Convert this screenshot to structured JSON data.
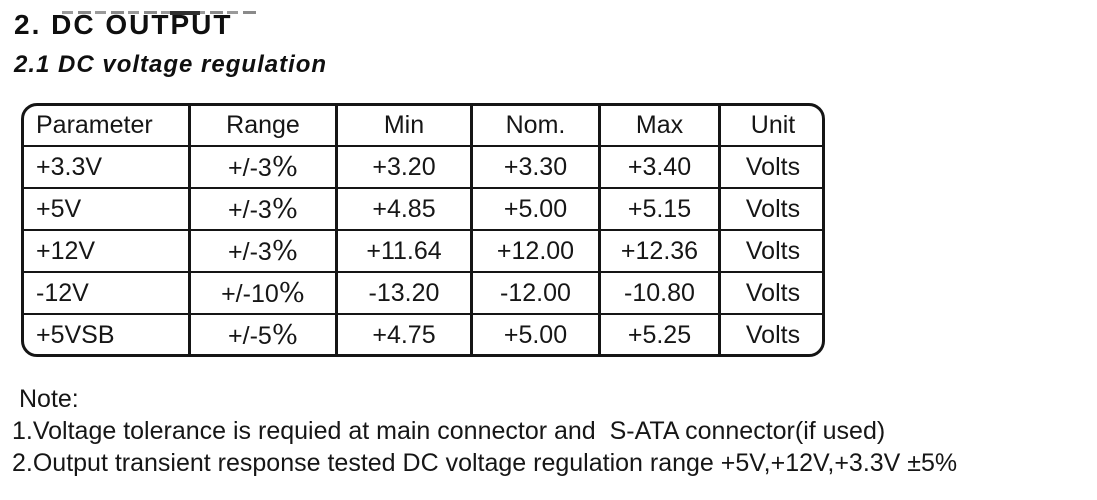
{
  "page": {
    "title": "2. DC OUTPUT",
    "subtitle": "2.1 DC voltage regulation"
  },
  "table": {
    "columns": [
      "Parameter",
      "Range",
      "Min",
      "Nom.",
      "Max",
      "Unit"
    ],
    "rows": [
      [
        "+3.3V",
        "+/-3%",
        "+3.20",
        "+3.30",
        "+3.40",
        "Volts"
      ],
      [
        "+5V",
        "+/-3%",
        "+4.85",
        "+5.00",
        "+5.15",
        "Volts"
      ],
      [
        "+12V",
        "+/-3%",
        "+11.64",
        "+12.00",
        "+12.36",
        "Volts"
      ],
      [
        "-12V",
        "+/-10%",
        "-13.20",
        "-12.00",
        "-10.80",
        "Volts"
      ],
      [
        "+5VSB",
        "+/-5%",
        "+4.75",
        "+5.00",
        "+5.25",
        "Volts"
      ]
    ]
  },
  "notes": {
    "label": "Note:",
    "items": [
      "1.Voltage tolerance is requied at main connector and  S-ATA connector(if used)",
      "2.Output transient response tested DC voltage regulation range +5V,+12V,+3.3V ±5%"
    ]
  },
  "colors": {
    "text": "#1a1a1a",
    "border": "#151515",
    "background": "#ffffff"
  }
}
